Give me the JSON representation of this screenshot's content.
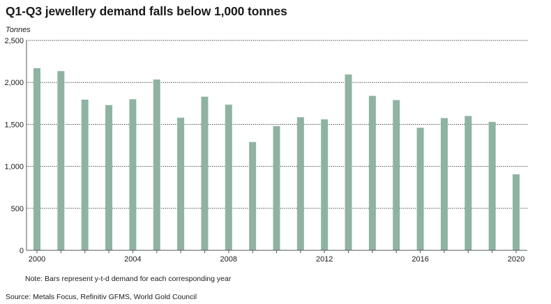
{
  "title": "Q1-Q3 jewellery demand falls below 1,000 tonnes",
  "unit_label": "Tonnes",
  "note": "Note: Bars represent y-t-d demand for each corresponding year",
  "source": "Source: Metals Focus, Refinitiv GFMS, World Gold Council",
  "colors": {
    "bar": "#8fb3a3",
    "grid": "#222222",
    "axis": "#555555"
  },
  "chart_data": {
    "type": "bar",
    "title": "Q1-Q3 jewellery demand falls below 1,000 tonnes",
    "xlabel": "",
    "ylabel": "Tonnes",
    "categories": [
      "2000",
      "2001",
      "2002",
      "2003",
      "2004",
      "2005",
      "2006",
      "2007",
      "2008",
      "2009",
      "2010",
      "2011",
      "2012",
      "2013",
      "2014",
      "2015",
      "2016",
      "2017",
      "2018",
      "2019",
      "2020"
    ],
    "values": [
      2170,
      2135,
      1795,
      1730,
      1800,
      2035,
      1580,
      1830,
      1735,
      1290,
      1480,
      1585,
      1560,
      2095,
      1840,
      1790,
      1460,
      1575,
      1600,
      1530,
      905
    ],
    "x_tick_labels": [
      "2000",
      "2004",
      "2008",
      "2012",
      "2016",
      "2020"
    ],
    "y_ticks": [
      0,
      500,
      1000,
      1500,
      2000,
      2500
    ],
    "y_tick_labels": [
      "0",
      "500",
      "1,000",
      "1,500",
      "2,000",
      "2,500"
    ],
    "ylim": [
      0,
      2500
    ],
    "grid": "horizontal dotted",
    "legend": "none"
  }
}
